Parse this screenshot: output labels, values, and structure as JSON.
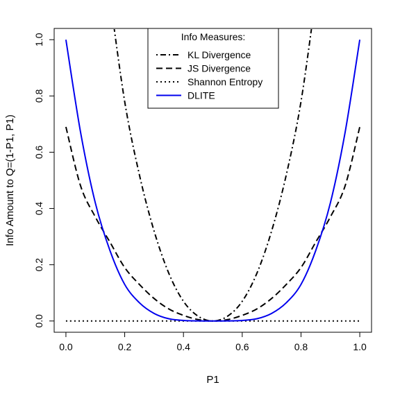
{
  "chart_data": {
    "type": "line",
    "title": "",
    "xlabel": "P1",
    "ylabel": "Info Amount to Q=(1-P1, P1)",
    "xlim": [
      0,
      1
    ],
    "ylim": [
      0,
      1
    ],
    "x_ticks": [
      "0.0",
      "0.2",
      "0.4",
      "0.6",
      "0.8",
      "1.0"
    ],
    "y_ticks": [
      "0.0",
      "0.2",
      "0.4",
      "0.6",
      "0.8",
      "1.0"
    ],
    "grid": false,
    "legend": {
      "title": "Info Measures:",
      "placement": "top-center",
      "entries": [
        {
          "label": "KL Divergence",
          "style": "dotdash",
          "color": "#000000"
        },
        {
          "label": "JS Divergence",
          "style": "dashed",
          "color": "#000000"
        },
        {
          "label": "Shannon Entropy",
          "style": "dotted",
          "color": "#000000"
        },
        {
          "label": "DLITE",
          "style": "solid",
          "color": "#0000ee"
        }
      ]
    },
    "x": [
      0.0,
      0.05,
      0.1,
      0.15,
      0.2,
      0.25,
      0.3,
      0.35,
      0.4,
      0.45,
      0.5,
      0.55,
      0.6,
      0.65,
      0.7,
      0.75,
      0.8,
      0.85,
      0.9,
      0.95,
      1.0
    ],
    "series": [
      {
        "name": "KL Divergence",
        "style": "dotdash",
        "color": "#000000",
        "values": [
          null,
          null,
          null,
          1.15,
          0.78,
          0.52,
          0.32,
          0.17,
          0.07,
          0.017,
          0.0,
          0.017,
          0.07,
          0.17,
          0.32,
          0.52,
          0.78,
          1.15,
          null,
          null,
          null
        ]
      },
      {
        "name": "JS Divergence",
        "style": "dashed",
        "color": "#000000",
        "values": [
          0.69,
          0.48,
          0.37,
          0.28,
          0.19,
          0.13,
          0.08,
          0.043,
          0.02,
          0.005,
          0.0,
          0.005,
          0.02,
          0.043,
          0.08,
          0.13,
          0.19,
          0.28,
          0.37,
          0.48,
          0.69
        ]
      },
      {
        "name": "Shannon Entropy",
        "style": "dotted",
        "color": "#000000",
        "values": [
          0.0,
          0.0,
          0.0,
          0.0,
          0.0,
          0.0,
          0.0,
          0.0,
          0.0,
          0.0,
          0.0,
          0.0,
          0.0,
          0.0,
          0.0,
          0.0,
          0.0,
          0.0,
          0.0,
          0.0,
          0.0
        ]
      },
      {
        "name": "DLITE",
        "style": "solid",
        "color": "#0000ee",
        "values": [
          1.0,
          0.67,
          0.42,
          0.25,
          0.13,
          0.065,
          0.027,
          0.008,
          0.002,
          0.0003,
          0.0,
          0.0003,
          0.002,
          0.008,
          0.027,
          0.065,
          0.13,
          0.25,
          0.42,
          0.67,
          1.0
        ]
      }
    ]
  }
}
